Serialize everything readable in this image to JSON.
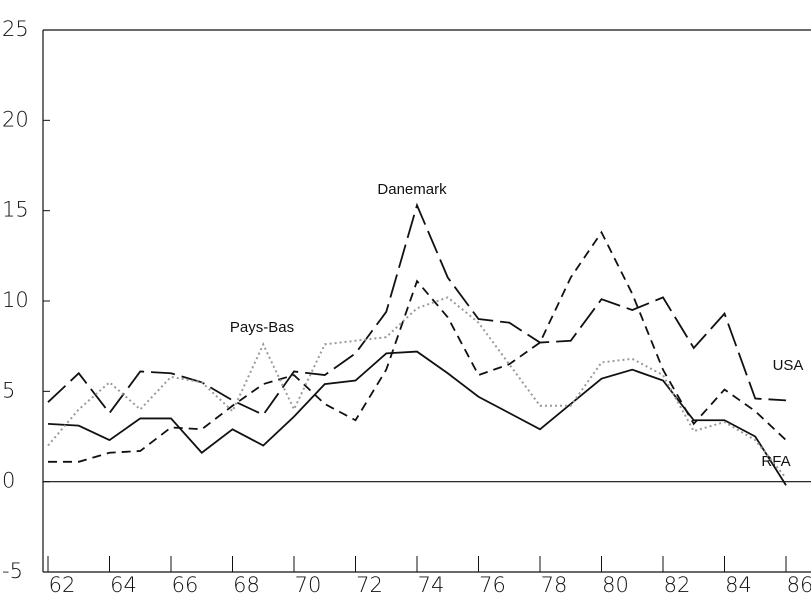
{
  "chart_data": {
    "type": "line",
    "x": [
      62,
      63,
      64,
      65,
      66,
      67,
      68,
      69,
      70,
      71,
      72,
      73,
      74,
      75,
      76,
      77,
      78,
      79,
      80,
      81,
      82,
      83,
      84,
      85,
      86
    ],
    "series": [
      {
        "name": "Danemark",
        "color": "#111111",
        "style": "long-dash",
        "values": [
          4.4,
          6.0,
          3.8,
          6.1,
          6.0,
          5.5,
          4.5,
          3.7,
          6.1,
          5.9,
          7.1,
          9.4,
          15.3,
          11.3,
          9.0,
          8.8,
          7.7,
          7.8,
          10.1,
          9.5,
          10.2,
          7.4,
          9.3,
          4.6,
          4.5
        ]
      },
      {
        "name": "USA",
        "color": "#111111",
        "style": "dash",
        "values": [
          1.1,
          1.1,
          1.6,
          1.7,
          3.0,
          2.9,
          4.2,
          5.4,
          5.9,
          4.3,
          3.4,
          6.2,
          11.1,
          9.1,
          5.9,
          6.5,
          7.7,
          11.3,
          13.8,
          10.4,
          6.2,
          3.2,
          5.1,
          3.9,
          2.3
        ]
      },
      {
        "name": "RFA",
        "color": "#111111",
        "style": "solid",
        "values": [
          3.2,
          3.1,
          2.3,
          3.5,
          3.5,
          1.6,
          2.9,
          2.0,
          3.6,
          5.4,
          5.6,
          7.1,
          7.2,
          6.0,
          4.7,
          3.8,
          2.9,
          4.3,
          5.7,
          6.2,
          5.6,
          3.4,
          3.4,
          2.5,
          -0.2
        ]
      },
      {
        "name": "Pays-Bas",
        "color": "#9a9a9a",
        "style": "dotted",
        "values": [
          2.0,
          4.0,
          5.5,
          4.0,
          5.8,
          5.5,
          3.9,
          7.6,
          4.0,
          7.6,
          7.8,
          8.0,
          9.6,
          10.2,
          8.8,
          6.5,
          4.2,
          4.2,
          6.6,
          6.8,
          5.9,
          2.8,
          3.3,
          2.3,
          0.2
        ]
      }
    ],
    "xlim": [
      62,
      86
    ],
    "xticks": [
      62,
      64,
      66,
      68,
      70,
      72,
      74,
      76,
      78,
      80,
      82,
      84,
      86
    ],
    "ylim": [
      -5,
      25
    ],
    "yticks": [
      -5,
      0,
      5,
      10,
      15,
      20,
      25
    ]
  }
}
